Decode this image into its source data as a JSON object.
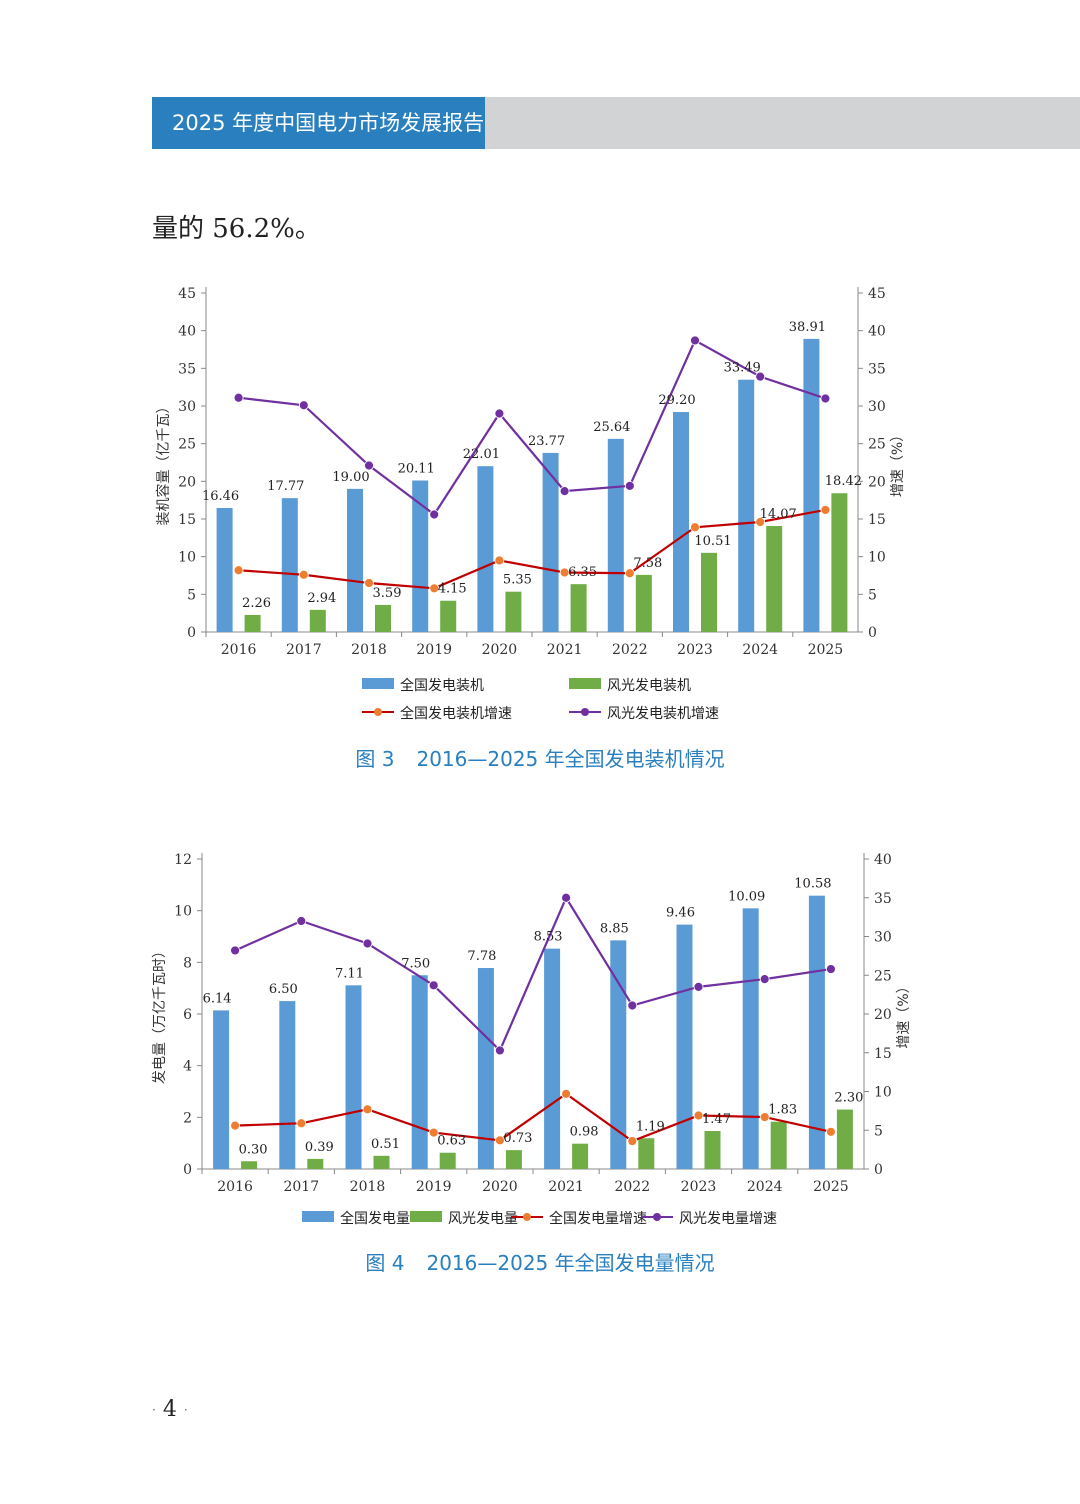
{
  "header": {
    "title": "2025 年度中国电力市场发展报告"
  },
  "intro_text": "量的 56.2%。",
  "page_number": "4",
  "colors": {
    "header_blue": "#2a7fbf",
    "header_grey": "#d1d3d4",
    "bar_blue": "#5b9bd5",
    "bar_green": "#70ad47",
    "line_red": "#c00000",
    "marker_orange": "#ed7d31",
    "line_purple": "#7030a0",
    "caption_blue": "#2a7fbf"
  },
  "chart_data": [
    {
      "type": "bar",
      "caption_num": "图 3",
      "caption_text": "2016—2025 年全国发电装机情况",
      "ylabel": "装机容量（亿千瓦）",
      "y2label": "增速（%）",
      "ylim": [
        0,
        45
      ],
      "y2lim": [
        0,
        45
      ],
      "yticks": [
        0,
        5,
        10,
        15,
        20,
        25,
        30,
        35,
        40,
        45
      ],
      "y2ticks": [
        0,
        5,
        10,
        15,
        20,
        25,
        30,
        35,
        40,
        45
      ],
      "legend_layout": "grid",
      "categories": [
        "2016",
        "2017",
        "2018",
        "2019",
        "2020",
        "2021",
        "2022",
        "2023",
        "2024",
        "2025"
      ],
      "series": [
        {
          "name": "全国发电装机",
          "kind": "bar",
          "axis": "left",
          "color": "#5b9bd5",
          "values": [
            16.46,
            17.77,
            19.0,
            20.11,
            22.01,
            23.77,
            25.64,
            29.2,
            33.49,
            38.91
          ],
          "labels": [
            "16.46",
            "17.77",
            "19.00",
            "20.11",
            "22.01",
            "23.77",
            "25.64",
            "29.20",
            "33.49",
            "38.91"
          ]
        },
        {
          "name": "风光发电装机",
          "kind": "bar",
          "axis": "left",
          "color": "#70ad47",
          "values": [
            2.26,
            2.94,
            3.59,
            4.15,
            5.35,
            6.35,
            7.58,
            10.51,
            14.07,
            18.42
          ],
          "labels": [
            "2.26",
            "2.94",
            "3.59",
            "4.15",
            "5.35",
            "6.35",
            "7.58",
            "10.51",
            "14.07",
            "18.42"
          ]
        },
        {
          "name": "全国发电装机增速",
          "kind": "line",
          "axis": "right",
          "color": "#c00000",
          "marker": "#ed7d31",
          "values": [
            8.2,
            7.6,
            6.5,
            5.8,
            9.5,
            7.9,
            7.8,
            13.9,
            14.6,
            16.2
          ]
        },
        {
          "name": "风光发电装机增速",
          "kind": "line",
          "axis": "right",
          "color": "#7030a0",
          "marker": "#7030a0",
          "values": [
            31.1,
            30.1,
            22.1,
            15.6,
            29.0,
            18.7,
            19.4,
            38.7,
            33.9,
            31.0
          ]
        }
      ]
    },
    {
      "type": "bar",
      "caption_num": "图 4",
      "caption_text": "2016—2025 年全国发电量情况",
      "ylabel": "发电量（万亿千瓦时）",
      "y2label": "增速（%）",
      "ylim": [
        0,
        12
      ],
      "y2lim": [
        0,
        40
      ],
      "yticks": [
        0,
        2,
        4,
        6,
        8,
        10,
        12
      ],
      "y2ticks": [
        0,
        5,
        10,
        15,
        20,
        25,
        30,
        35,
        40
      ],
      "legend_layout": "row",
      "categories": [
        "2016",
        "2017",
        "2018",
        "2019",
        "2020",
        "2021",
        "2022",
        "2023",
        "2024",
        "2025"
      ],
      "series": [
        {
          "name": "全国发电量",
          "kind": "bar",
          "axis": "left",
          "color": "#5b9bd5",
          "values": [
            6.14,
            6.5,
            7.11,
            7.5,
            7.78,
            8.53,
            8.85,
            9.46,
            10.09,
            10.58
          ],
          "labels": [
            "6.14",
            "6.50",
            "7.11",
            "7.50",
            "7.78",
            "8.53",
            "8.85",
            "9.46",
            "10.09",
            "10.58"
          ]
        },
        {
          "name": "风光发电量",
          "kind": "bar",
          "axis": "left",
          "color": "#70ad47",
          "values": [
            0.3,
            0.39,
            0.51,
            0.63,
            0.73,
            0.98,
            1.19,
            1.47,
            1.83,
            2.3
          ],
          "labels": [
            "0.30",
            "0.39",
            "0.51",
            "0.63",
            "0.73",
            "0.98",
            "1.19",
            "1.47",
            "1.83",
            "2.30"
          ]
        },
        {
          "name": "全国发电量增速",
          "kind": "line",
          "axis": "right",
          "color": "#c00000",
          "marker": "#ed7d31",
          "values": [
            5.6,
            5.9,
            7.7,
            4.7,
            3.7,
            9.7,
            3.6,
            6.9,
            6.7,
            4.8
          ]
        },
        {
          "name": "风光发电量增速",
          "kind": "line",
          "axis": "right",
          "color": "#7030a0",
          "marker": "#7030a0",
          "values": [
            28.2,
            32.0,
            29.1,
            23.7,
            15.3,
            35.0,
            21.1,
            23.5,
            24.5,
            25.8
          ]
        }
      ]
    }
  ]
}
